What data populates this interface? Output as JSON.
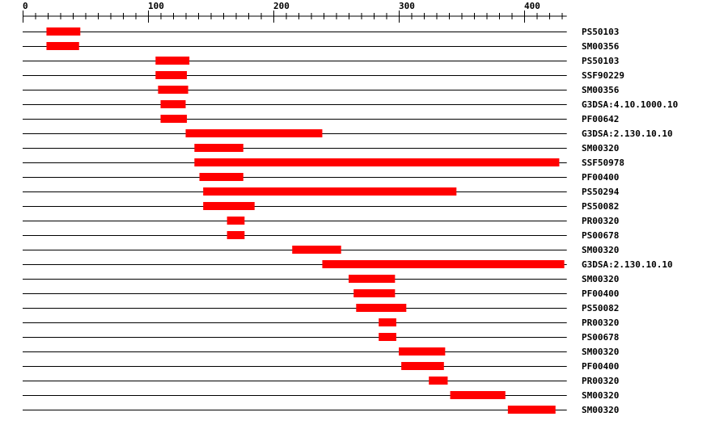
{
  "axis": {
    "min": 0,
    "max": 434,
    "major_ticks": [
      0,
      100,
      200,
      300,
      400
    ],
    "minor_step": 10,
    "tick_labels": [
      "0",
      "100",
      "200",
      "300",
      "400"
    ]
  },
  "colors": {
    "domain": "#ff0000",
    "line": "#000000"
  },
  "rows": [
    {
      "label": "PS50103",
      "start": 19,
      "end": 46
    },
    {
      "label": "SM00356",
      "start": 19,
      "end": 45
    },
    {
      "label": "PS50103",
      "start": 106,
      "end": 133
    },
    {
      "label": "SSF90229",
      "start": 106,
      "end": 131
    },
    {
      "label": "SM00356",
      "start": 108,
      "end": 132
    },
    {
      "label": "G3DSA:4.10.1000.10",
      "start": 110,
      "end": 130
    },
    {
      "label": "PF00642",
      "start": 110,
      "end": 131
    },
    {
      "label": "G3DSA:2.130.10.10",
      "start": 130,
      "end": 239
    },
    {
      "label": "SM00320",
      "start": 137,
      "end": 176
    },
    {
      "label": "SSF50978",
      "start": 137,
      "end": 428
    },
    {
      "label": "PF00400",
      "start": 141,
      "end": 176
    },
    {
      "label": "PS50294",
      "start": 144,
      "end": 346
    },
    {
      "label": "PS50082",
      "start": 144,
      "end": 185
    },
    {
      "label": "PR00320",
      "start": 163,
      "end": 177
    },
    {
      "label": "PS00678",
      "start": 163,
      "end": 177
    },
    {
      "label": "SM00320",
      "start": 215,
      "end": 254
    },
    {
      "label": "G3DSA:2.130.10.10",
      "start": 239,
      "end": 432
    },
    {
      "label": "SM00320",
      "start": 260,
      "end": 297
    },
    {
      "label": "PF00400",
      "start": 264,
      "end": 297
    },
    {
      "label": "PS50082",
      "start": 266,
      "end": 306
    },
    {
      "label": "PR00320",
      "start": 284,
      "end": 298
    },
    {
      "label": "PS00678",
      "start": 284,
      "end": 298
    },
    {
      "label": "SM00320",
      "start": 300,
      "end": 337
    },
    {
      "label": "PF00400",
      "start": 302,
      "end": 336
    },
    {
      "label": "PR00320",
      "start": 324,
      "end": 339
    },
    {
      "label": "SM00320",
      "start": 341,
      "end": 385
    },
    {
      "label": "SM00320",
      "start": 387,
      "end": 425
    }
  ]
}
